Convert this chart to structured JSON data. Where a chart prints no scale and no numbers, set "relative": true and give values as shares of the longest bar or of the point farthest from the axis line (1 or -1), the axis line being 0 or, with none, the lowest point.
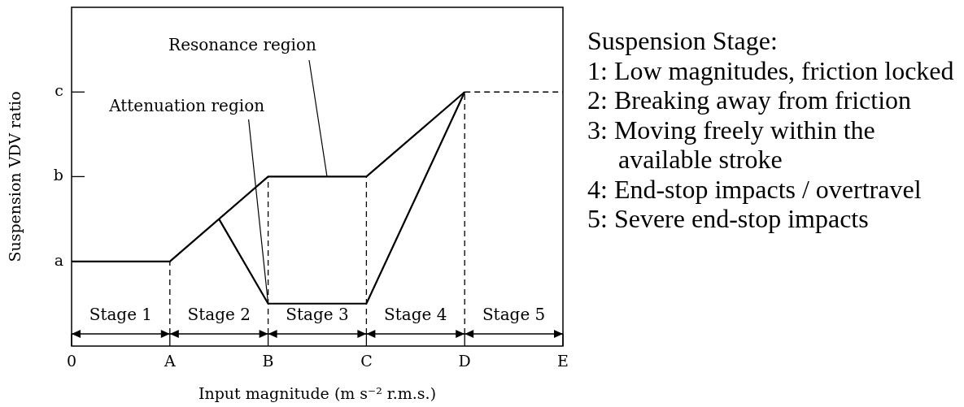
{
  "chart_data": [
    {
      "type": "line",
      "xlabel": "Input magnitude (m s⁻² r.m.s.)",
      "ylabel": "Suspension VDV ratio",
      "relative": true,
      "categories": [
        "0",
        null,
        "A",
        null,
        "B",
        null,
        "C",
        null,
        "D",
        null,
        "E"
      ],
      "marker": "none",
      "line_style": "solid",
      "series": [
        {
          "name": "Resonance region",
          "color": "#000000",
          "x": [
            "0",
            "A",
            "B",
            "C",
            "D"
          ],
          "values": [
            0.333,
            0.333,
            0.667,
            0.667,
            1
          ]
        },
        {
          "color": "#000000",
          "values": [
            null,
            null,
            null,
            0.5,
            0.167,
            0.167,
            0.167,
            0.583,
            1,
            null,
            null
          ]
        },
        {
          "color": "#000000",
          "line_style": "dashed",
          "x": [
            "D",
            "E"
          ],
          "values": [
            1,
            1
          ]
        }
      ],
      "ref_lines": [
        {
          "axis": "x",
          "value": "A",
          "line_style": "dashed"
        },
        {
          "axis": "x",
          "value": "B",
          "line_style": "dashed"
        },
        {
          "axis": "x",
          "value": "C",
          "line_style": "dashed"
        },
        {
          "axis": "x",
          "value": "D",
          "line_style": "dashed"
        }
      ],
      "annotations": [
        "a",
        "b",
        "c",
        {
          "text": "Attenuation region",
          "x": "B",
          "y": 0.167
        },
        "Stage 1",
        "Stage 2",
        "Stage 3",
        "Stage 4",
        "Stage 5"
      ]
    },
    {
      "type": "other",
      "title": "Suspension Stage:",
      "annotations": [
        "1: Low magnitudes, friction locked",
        "2: Breaking away from friction",
        "3: Moving freely within the\navailable stroke",
        "4: End-stop impacts / overtravel",
        "5: Severe end-stop impacts"
      ]
    }
  ]
}
